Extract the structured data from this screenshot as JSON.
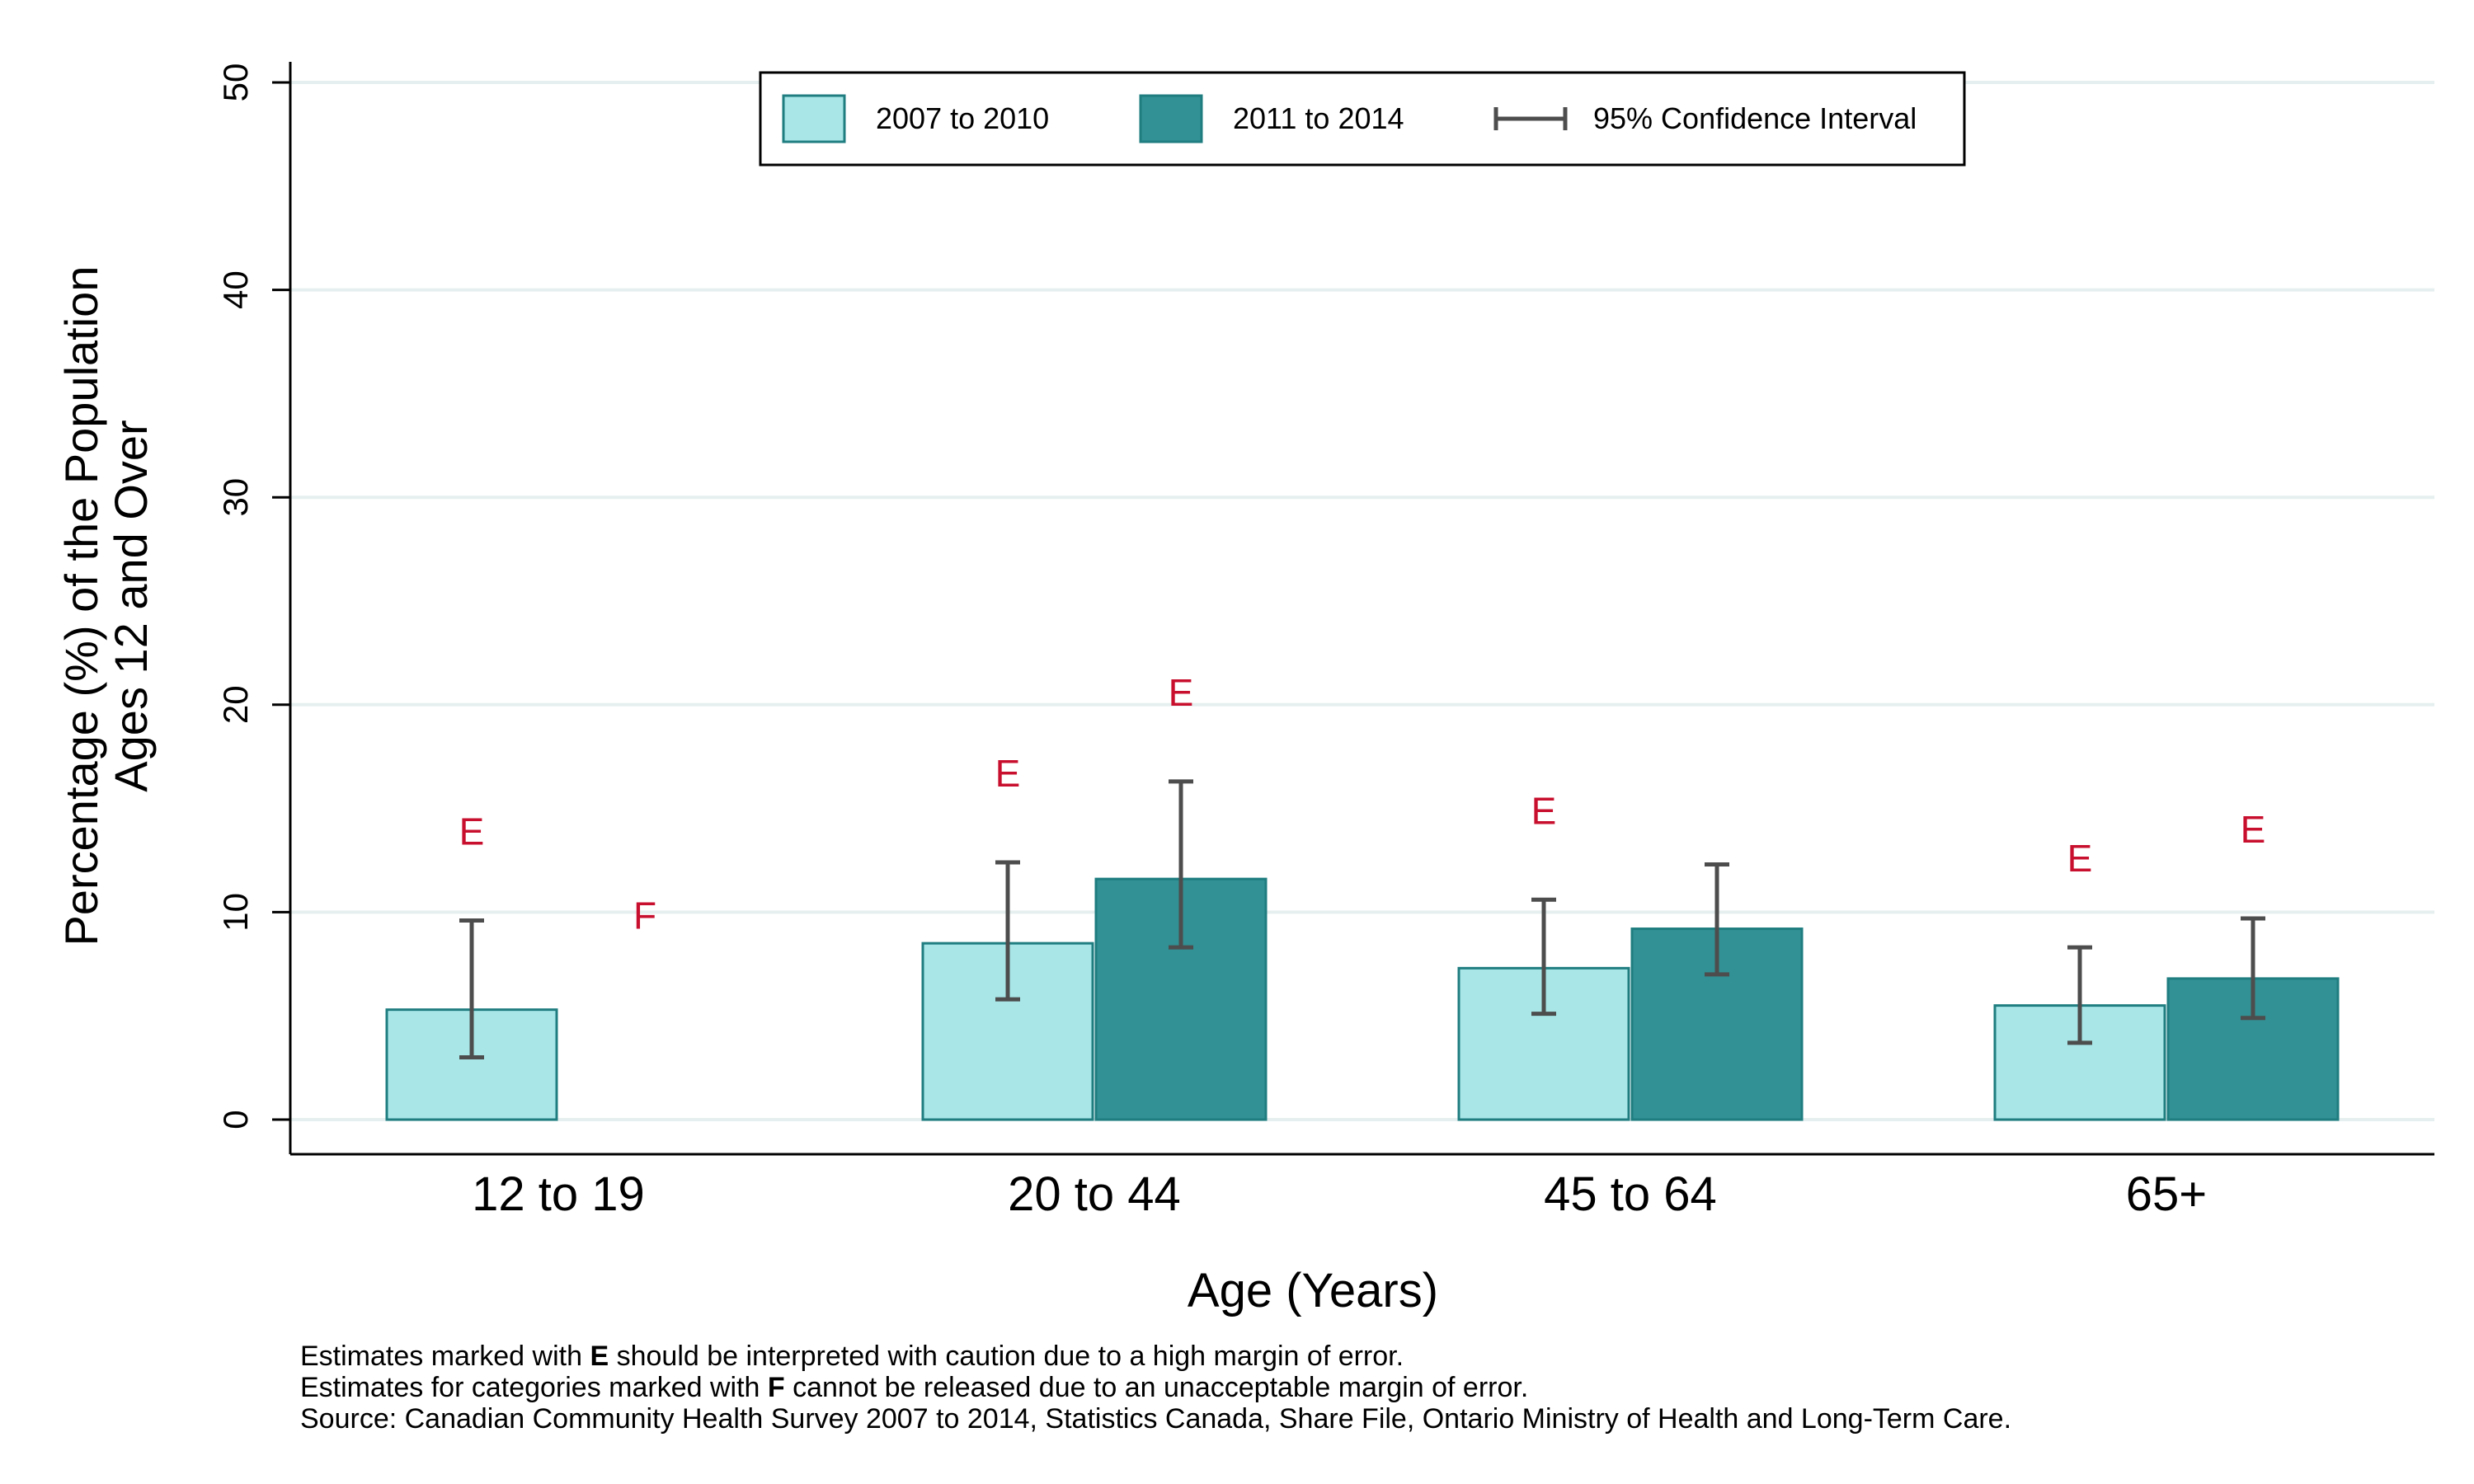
{
  "chart_data": {
    "type": "bar",
    "title": "",
    "ylabel": [
      "Percentage (%) of the Population",
      "Ages 12 and Over"
    ],
    "xlabel": "Age (Years)",
    "ylim": [
      0,
      50
    ],
    "yticks": [
      0,
      10,
      20,
      30,
      40,
      50
    ],
    "grid": true,
    "legend_position": "top-center",
    "categories": [
      "12 to 19",
      "20 to 44",
      "45 to 64",
      "65+"
    ],
    "series": [
      {
        "name": "2007 to 2010",
        "color": "#a8e6e8",
        "stroke": "#1f7d80",
        "values": [
          5.3,
          8.5,
          7.3,
          5.5
        ],
        "ci_low": [
          3.0,
          5.8,
          5.1,
          3.7
        ],
        "ci_high": [
          9.6,
          12.4,
          10.6,
          8.3
        ],
        "flags": [
          "E",
          "E",
          "E",
          "E"
        ]
      },
      {
        "name": "2011 to 2014",
        "color": "#329194",
        "stroke": "#1f7d80",
        "values": [
          null,
          11.6,
          9.2,
          6.8
        ],
        "ci_low": [
          null,
          8.3,
          7.0,
          4.9
        ],
        "ci_high": [
          null,
          16.3,
          12.3,
          9.7
        ],
        "flags": [
          "F",
          "E",
          "",
          "E"
        ]
      }
    ],
    "legend_ci_label": "95% Confidence Interval",
    "flag_color": "#c8102e",
    "ci_color": "#4d4d4d"
  },
  "notes": {
    "line1_pre": "Estimates marked with ",
    "line1_flag": "E",
    "line1_post": " should be interpreted with caution due to a high margin of error.",
    "line2_pre": "Estimates for categories marked with ",
    "line2_flag": "F",
    "line2_post": " cannot be released due to an unacceptable margin of error.",
    "source": "Source: Canadian Community Health Survey 2007 to 2014, Statistics Canada, Share File, Ontario Ministry of Health and Long-Term Care."
  }
}
